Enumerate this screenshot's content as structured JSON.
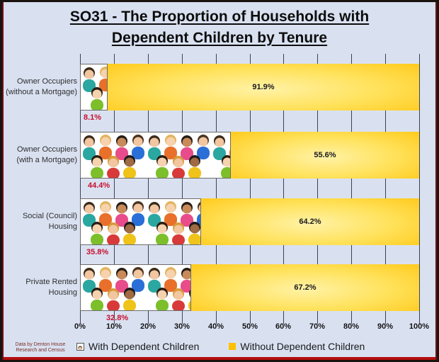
{
  "frame": {
    "background": "#D9E1F1",
    "outer_border_color": "#191410",
    "red_border_color": "#B40E0E"
  },
  "title": {
    "line1": "SO31 - The Proportion of Households with",
    "line2": "Dependent Children by Tenure"
  },
  "chart_data": {
    "type": "bar",
    "orientation": "horizontal_stacked",
    "title": "SO31 - The Proportion of Households with Dependent Children by Tenure",
    "categories": [
      "Owner Occupiers (without a Mortgage)",
      "Owner Occupiers (with a Mortgage)",
      "Social (Council) Housing",
      "Private Rented Housing"
    ],
    "category_lines": [
      [
        "Owner Occupiers",
        "(without a Mortgage)"
      ],
      [
        "Owner Occupiers",
        "(with a Mortgage)"
      ],
      [
        "Social (Council)",
        "Housing"
      ],
      [
        "Private Rented",
        "Housing"
      ]
    ],
    "series": [
      {
        "name": "With Dependent Children",
        "values": [
          8.1,
          44.4,
          35.8,
          32.8
        ],
        "labels": [
          "8.1%",
          "44.4%",
          "35.8%",
          "32.8%"
        ],
        "fill": "children-photo",
        "label_color": "#C8102E"
      },
      {
        "name": "Without Dependent Children",
        "values": [
          91.9,
          55.6,
          64.2,
          67.2
        ],
        "labels": [
          "91.9%",
          "55.6%",
          "64.2%",
          "67.2%"
        ],
        "fill": "gold-gradient",
        "color": "#FFC000",
        "label_color": "#1A1A1A"
      }
    ],
    "xlim": [
      0,
      100
    ],
    "x_tick_labels": [
      "0%",
      "10%",
      "20%",
      "30%",
      "40%",
      "50%",
      "60%",
      "70%",
      "80%",
      "90%",
      "100%"
    ],
    "grid": "vertical",
    "grid_color": "#3C4254",
    "legend_position": "bottom"
  },
  "legend": {
    "items": [
      {
        "label": "With Dependent Children",
        "swatch": "children-photo"
      },
      {
        "label": "Without Dependent Children",
        "swatch": "gold-square",
        "color": "#FFC000"
      }
    ]
  },
  "attribution": {
    "line1": "Data by Denton House",
    "line2": "Research and Census"
  }
}
